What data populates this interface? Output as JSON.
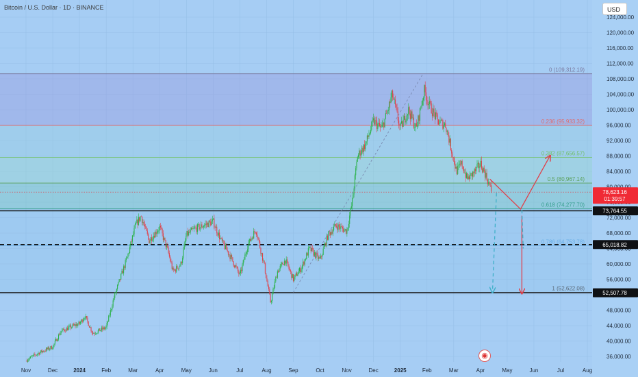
{
  "header": {
    "title": "Bitcoin / U.S. Dollar · 1D · BINANCE",
    "currency": "USD"
  },
  "chart_data": {
    "type": "candlestick",
    "symbol": "BTCUSD",
    "exchange": "BINANCE",
    "interval": "1D",
    "x_ticks": [
      "Nov",
      "Dec",
      "2024",
      "Feb",
      "Mar",
      "Apr",
      "May",
      "Jun",
      "Jul",
      "Aug",
      "Sep",
      "Oct",
      "Nov",
      "Dec",
      "2025",
      "Feb",
      "Mar",
      "Apr",
      "May",
      "Jun",
      "Jul",
      "Aug"
    ],
    "y_ticks": [
      "124,000.00",
      "120,000.00",
      "116,000.00",
      "112,000.00",
      "108,000.00",
      "104,000.00",
      "100,000.00",
      "96,000.00",
      "92,000.00",
      "88,000.00",
      "84,000.00",
      "80,000.00",
      "76,000.00",
      "72,000.00",
      "68,000.00",
      "64,000.00",
      "60,000.00",
      "56,000.00",
      "52,000.00",
      "48,000.00",
      "44,000.00",
      "40,000.00",
      "36,000.00"
    ],
    "ylim": [
      34500,
      126000
    ],
    "price_path": [
      {
        "m": 0.0,
        "p": 35000
      },
      {
        "m": 0.5,
        "p": 37000
      },
      {
        "m": 1.0,
        "p": 38500
      },
      {
        "m": 1.3,
        "p": 42500
      },
      {
        "m": 1.8,
        "p": 44000
      },
      {
        "m": 2.0,
        "p": 44500
      },
      {
        "m": 2.2,
        "p": 46500
      },
      {
        "m": 2.5,
        "p": 42000
      },
      {
        "m": 3.0,
        "p": 43500
      },
      {
        "m": 3.3,
        "p": 51500
      },
      {
        "m": 3.8,
        "p": 62000
      },
      {
        "m": 4.1,
        "p": 70000
      },
      {
        "m": 4.3,
        "p": 72500
      },
      {
        "m": 4.6,
        "p": 66000
      },
      {
        "m": 5.0,
        "p": 69500
      },
      {
        "m": 5.3,
        "p": 63500
      },
      {
        "m": 5.5,
        "p": 58000
      },
      {
        "m": 5.8,
        "p": 60000
      },
      {
        "m": 6.0,
        "p": 67500
      },
      {
        "m": 6.3,
        "p": 69000
      },
      {
        "m": 7.0,
        "p": 71000
      },
      {
        "m": 7.3,
        "p": 66000
      },
      {
        "m": 7.6,
        "p": 62500
      },
      {
        "m": 8.0,
        "p": 57000
      },
      {
        "m": 8.3,
        "p": 65000
      },
      {
        "m": 8.6,
        "p": 69000
      },
      {
        "m": 8.9,
        "p": 60000
      },
      {
        "m": 9.15,
        "p": 50000
      },
      {
        "m": 9.4,
        "p": 58000
      },
      {
        "m": 9.7,
        "p": 61000
      },
      {
        "m": 10.0,
        "p": 56000
      },
      {
        "m": 10.3,
        "p": 59000
      },
      {
        "m": 10.6,
        "p": 64000
      },
      {
        "m": 11.0,
        "p": 61000
      },
      {
        "m": 11.3,
        "p": 67500
      },
      {
        "m": 11.6,
        "p": 70000
      },
      {
        "m": 12.0,
        "p": 68500
      },
      {
        "m": 12.2,
        "p": 76000
      },
      {
        "m": 12.4,
        "p": 88000
      },
      {
        "m": 12.7,
        "p": 91000
      },
      {
        "m": 13.0,
        "p": 97000
      },
      {
        "m": 13.3,
        "p": 95000
      },
      {
        "m": 13.5,
        "p": 99000
      },
      {
        "m": 13.7,
        "p": 104000
      },
      {
        "m": 14.0,
        "p": 95000
      },
      {
        "m": 14.3,
        "p": 100000
      },
      {
        "m": 14.6,
        "p": 95000
      },
      {
        "m": 14.9,
        "p": 105000
      },
      {
        "m": 15.1,
        "p": 101000
      },
      {
        "m": 15.4,
        "p": 97000
      },
      {
        "m": 15.7,
        "p": 96000
      },
      {
        "m": 15.9,
        "p": 90000
      },
      {
        "m": 16.1,
        "p": 84000
      },
      {
        "m": 16.3,
        "p": 86000
      },
      {
        "m": 16.5,
        "p": 82000
      },
      {
        "m": 16.8,
        "p": 84000
      },
      {
        "m": 17.0,
        "p": 86000
      },
      {
        "m": 17.2,
        "p": 83000
      },
      {
        "m": 17.4,
        "p": 79000
      }
    ],
    "fib_levels": [
      {
        "ratio": "0",
        "price": 109312.19,
        "label": "0 (109,312.19)",
        "color": "#7a7aa0",
        "fill": "rgba(150,150,220,0.38)"
      },
      {
        "ratio": "0.236",
        "price": 95933.32,
        "label": "0.236 (95,933.32)",
        "color": "#e06a6a",
        "fill": "rgba(150,205,225,0.42)"
      },
      {
        "ratio": "0.382",
        "price": 87656.57,
        "label": "0.382 (87,656.57)",
        "color": "#72c06a",
        "fill": "rgba(150,215,205,0.40)"
      },
      {
        "ratio": "0.5",
        "price": 80967.14,
        "label": "0.5 (80,967.14)",
        "color": "#5aa05a",
        "fill": "rgba(120,200,190,0.40)"
      },
      {
        "ratio": "0.618",
        "price": 74277.7,
        "label": "0.618 (74,277.70)",
        "color": "#3aa090",
        "fill": "rgba(130,190,230,0.20)"
      },
      {
        "ratio": "0.786",
        "price": 64753.78,
        "label": "0.786 (64,753.78)",
        "color": "#6ab0e8",
        "fill": "rgba(130,190,230,0.20)"
      },
      {
        "ratio": "1",
        "price": 52622.08,
        "label": "1 (52,622.08)",
        "color": "#5b6b7a",
        "fill": null
      }
    ],
    "horizontal_levels": [
      {
        "price": 73764.55,
        "label": "73,764.55",
        "style": "solid"
      },
      {
        "price": 65018.82,
        "label": "65,018.82",
        "style": "dashed"
      },
      {
        "price": 52507.78,
        "label": "52,507.78",
        "style": "solid"
      }
    ],
    "last_price": {
      "value": 78623.16,
      "label": "78,623.16",
      "countdown": "01:39:57"
    },
    "projections": [
      {
        "kind": "arrow-path",
        "color": "#e0404a",
        "points": [
          {
            "m": 17.35,
            "p": 82000
          },
          {
            "m": 18.5,
            "p": 74200
          },
          {
            "m": 19.6,
            "p": 88000
          }
        ]
      },
      {
        "kind": "arrow",
        "color": "#e0404a",
        "points": [
          {
            "m": 18.55,
            "p": 72500
          },
          {
            "m": 18.55,
            "p": 52400
          }
        ]
      },
      {
        "kind": "arrow-dashed",
        "color": "#3fb0c8",
        "points": [
          {
            "m": 17.6,
            "p": 78400
          },
          {
            "m": 17.45,
            "p": 52700
          }
        ]
      },
      {
        "kind": "dashed-guide",
        "color": "#3fb0c8",
        "points": [
          {
            "m": 18.55,
            "p": 74000
          },
          {
            "m": 18.6,
            "p": 64000
          }
        ]
      },
      {
        "kind": "trend",
        "color": "#7a8ab0",
        "points": [
          {
            "m": 10.0,
            "p": 52600
          },
          {
            "m": 14.85,
            "p": 109300
          }
        ]
      }
    ]
  }
}
